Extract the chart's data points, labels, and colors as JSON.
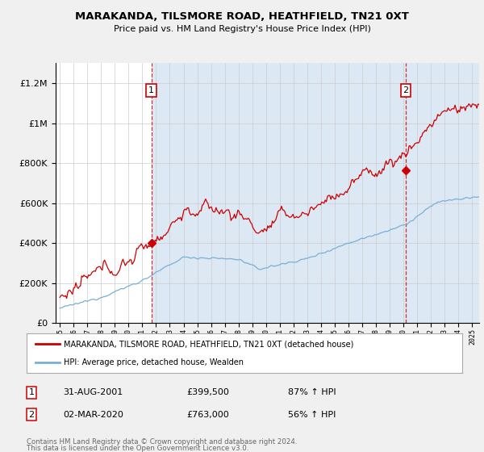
{
  "title1": "MARAKANDA, TILSMORE ROAD, HEATHFIELD, TN21 0XT",
  "title2": "Price paid vs. HM Land Registry's House Price Index (HPI)",
  "legend_line1": "MARAKANDA, TILSMORE ROAD, HEATHFIELD, TN21 0XT (detached house)",
  "legend_line2": "HPI: Average price, detached house, Wealden",
  "sale1_date_str": "31-AUG-2001",
  "sale1_price": 399500,
  "sale1_pct": "87% ↑ HPI",
  "sale2_date_str": "02-MAR-2020",
  "sale2_price": 763000,
  "sale2_pct": "56% ↑ HPI",
  "footer1": "Contains HM Land Registry data © Crown copyright and database right 2024.",
  "footer2": "This data is licensed under the Open Government Licence v3.0.",
  "red_color": "#cc0000",
  "blue_color": "#7aafd4",
  "shade_color": "#dce9f5",
  "background_color": "#f0f0f0",
  "plot_bg_color": "#ffffff",
  "ylim": [
    0,
    1300000
  ],
  "xlim_start": 1994.7,
  "xlim_end": 2025.5,
  "sale1_t": 2001.667,
  "sale2_t": 2020.167
}
